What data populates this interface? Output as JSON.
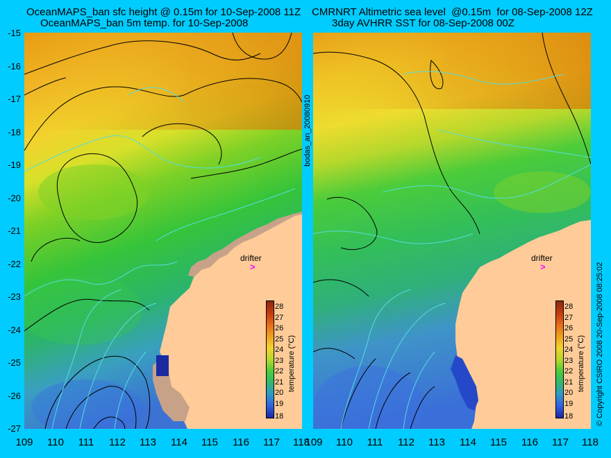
{
  "left_panel": {
    "title_line1": "OceanMAPS_ban sfc height @ 0.15m for 10-Sep-2008 11Z",
    "title_line2": "OceanMAPS_ban 5m temp. for 10-Sep-2008",
    "drifter_label": "drifter",
    "drifter_marker": ">"
  },
  "right_panel": {
    "title_line1": "CMRNRT Altimetric sea level  @0.15m  for 08-Sep-2008 12Z",
    "title_line2": "3day AVHRR SST for 08-Sep-2008 00Z",
    "drifter_label": "drifter",
    "drifter_marker": ">"
  },
  "y_ticks": [
    "-15",
    "-16",
    "-17",
    "-18",
    "-19",
    "-20",
    "-21",
    "-22",
    "-23",
    "-24",
    "-25",
    "-26",
    "-27"
  ],
  "x_ticks": [
    "109",
    "110",
    "111",
    "112",
    "113",
    "114",
    "115",
    "116",
    "117",
    "118"
  ],
  "side_label": "bodas_an_20080910",
  "copyright": "© Copyright CSIRO 2008   20-Sep-2008 08:25:02",
  "colorbar": {
    "label": "temperature (°C)",
    "ticks": [
      "28",
      "27",
      "26",
      "25",
      "24",
      "23",
      "22",
      "21",
      "20",
      "19",
      "18"
    ],
    "min": 18,
    "max": 28
  },
  "colors": {
    "background": "#00ccff",
    "land": "#ffcc99",
    "coast_mask": "#c8a288",
    "drifter": "#ff00ff",
    "contour_height": "#000000",
    "contour_shelf": "#55dddd"
  }
}
